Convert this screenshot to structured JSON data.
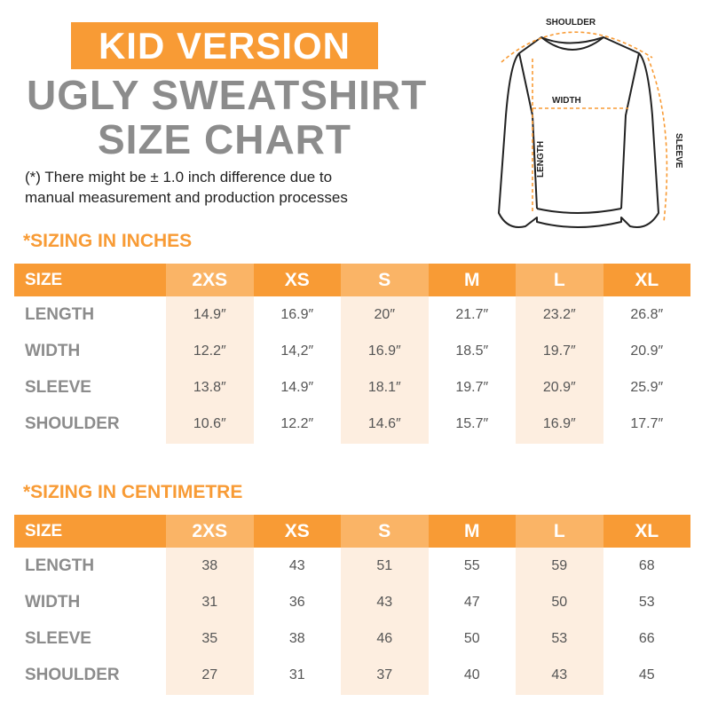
{
  "header": {
    "badge": "KID VERSION",
    "title_line1": "UGLY SWEATSHIRT",
    "title_line2": "SIZE CHART",
    "note_line1": "(*) There might be ± 1.0 inch difference due to",
    "note_line2": "manual measurement and production processes"
  },
  "diagram": {
    "shoulder": "SHOULDER",
    "width": "WIDTH",
    "length": "LENGTH",
    "sleeve": "SLEEVE"
  },
  "tables": [
    {
      "heading": "*SIZING IN INCHES",
      "columns": [
        "SIZE",
        "2XS",
        "XS",
        "S",
        "M",
        "L",
        "XL"
      ],
      "rows": [
        [
          "LENGTH",
          "14.9″",
          "16.9″",
          "20″",
          "21.7″",
          "23.2″",
          "26.8″"
        ],
        [
          "WIDTH",
          "12.2″",
          "14,2″",
          "16.9″",
          "18.5″",
          "19.7″",
          "20.9″"
        ],
        [
          "SLEEVE",
          "13.8″",
          "14.9″",
          "18.1″",
          "19.7″",
          "20.9″",
          "25.9″"
        ],
        [
          "SHOULDER",
          "10.6″",
          "12.2″",
          "14.6″",
          "15.7″",
          "16.9″",
          "17.7″"
        ]
      ]
    },
    {
      "heading": "*SIZING IN CENTIMETRE",
      "columns": [
        "SIZE",
        "2XS",
        "XS",
        "S",
        "M",
        "L",
        "XL"
      ],
      "rows": [
        [
          "LENGTH",
          "38",
          "43",
          "51",
          "55",
          "59",
          "68"
        ],
        [
          "WIDTH",
          "31",
          "36",
          "43",
          "47",
          "50",
          "53"
        ],
        [
          "SLEEVE",
          "35",
          "38",
          "46",
          "50",
          "53",
          "66"
        ],
        [
          "SHOULDER",
          "27",
          "31",
          "37",
          "40",
          "43",
          "45"
        ]
      ]
    }
  ]
}
